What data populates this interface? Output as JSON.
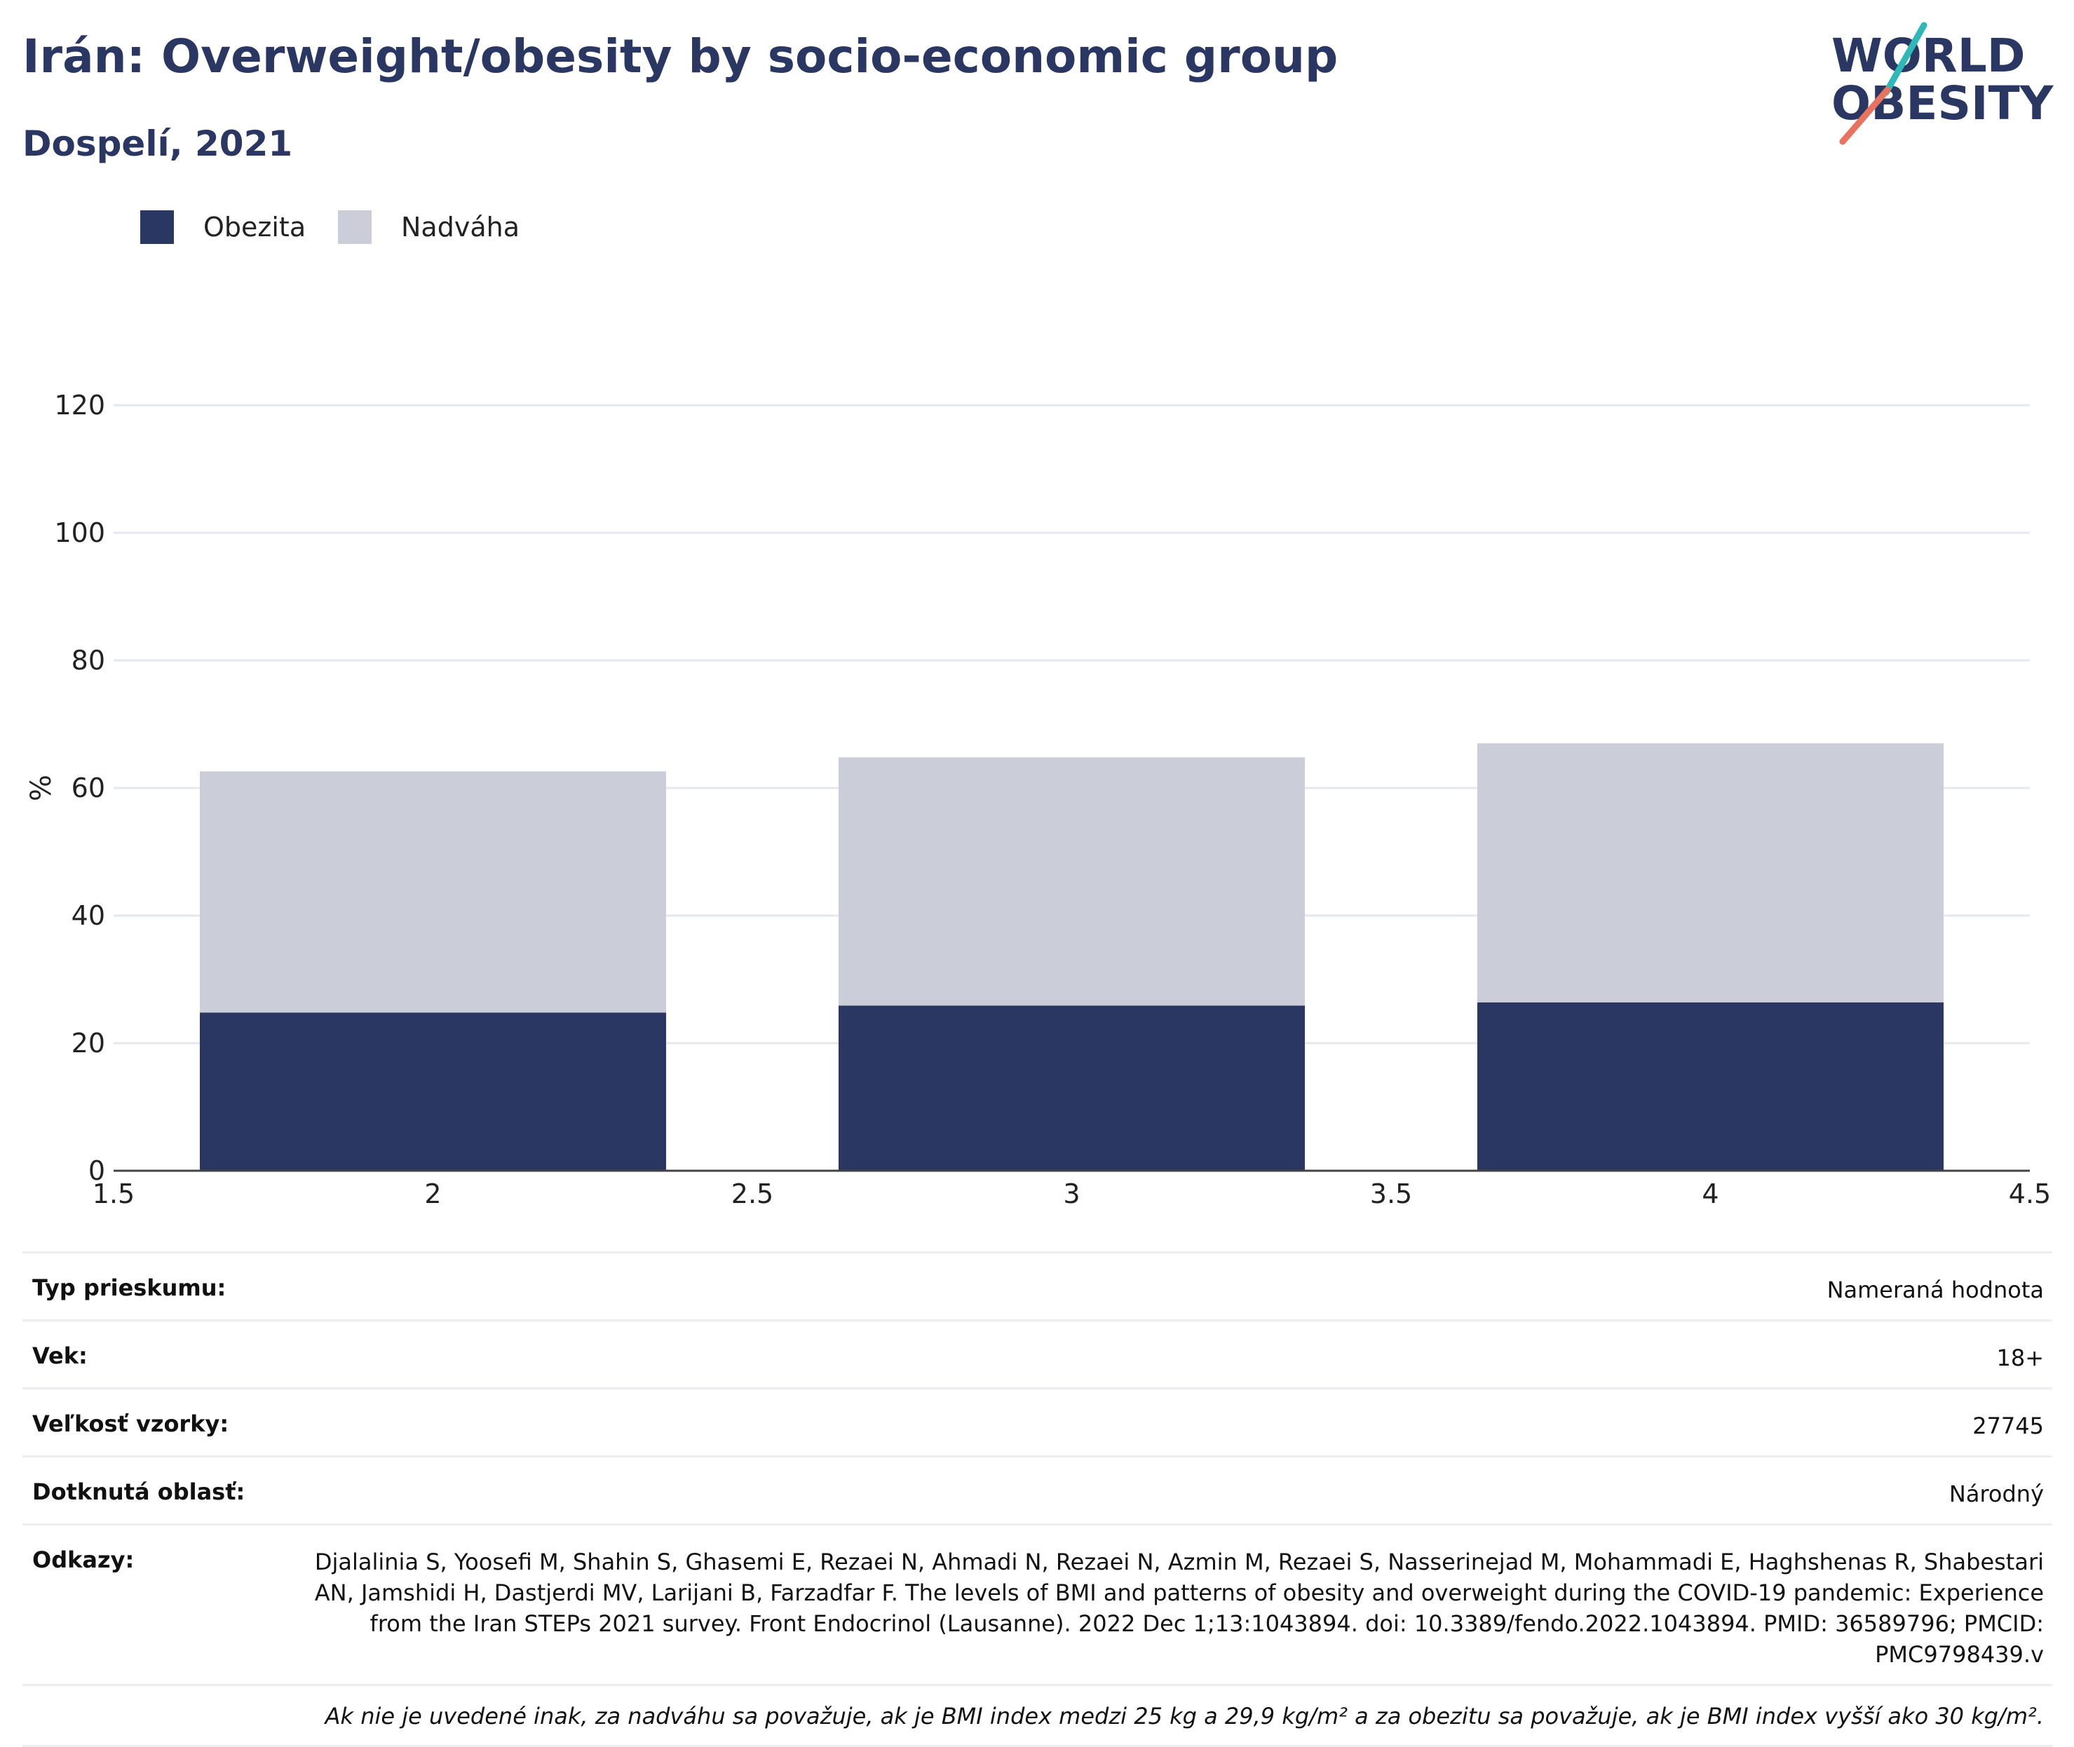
{
  "header": {
    "title": "Irán: Overweight/obesity by socio-economic group",
    "subtitle": "Dospelí, 2021"
  },
  "logo": {
    "line1": "WORLD",
    "line2": "OBESITY",
    "colors": {
      "text": "#2b3763",
      "slash_top": "#2fb8b8",
      "slash_bottom": "#e8735f"
    }
  },
  "legend": [
    {
      "label": "Obezita",
      "color": "#2b3763"
    },
    {
      "label": "Nadváha",
      "color": "#cbcdd8"
    }
  ],
  "chart_data": {
    "type": "bar",
    "stacked": true,
    "x": [
      2,
      3,
      4
    ],
    "xlim": [
      1.5,
      4.5
    ],
    "xticks": [
      "1.5",
      "2",
      "2.5",
      "3",
      "3.5",
      "4",
      "4.5"
    ],
    "ylim": [
      0,
      120
    ],
    "yticks": [
      "0",
      "20",
      "40",
      "60",
      "80",
      "100",
      "120"
    ],
    "ylabel": "%",
    "grid": true,
    "legend_position": "top-left",
    "series": [
      {
        "name": "Obezita",
        "color": "#2b3763",
        "values": [
          24.8,
          25.9,
          26.4
        ]
      },
      {
        "name": "Nadváha",
        "color": "#cbcdd8",
        "values": [
          37.8,
          38.9,
          40.6
        ]
      }
    ]
  },
  "info": [
    {
      "label": "Typ prieskumu:",
      "value": "Nameraná hodnota"
    },
    {
      "label": "Vek:",
      "value": "18+"
    },
    {
      "label": "Veľkosť vzorky:",
      "value": "27745"
    },
    {
      "label": "Dotknutá oblasť:",
      "value": "Národný"
    },
    {
      "label": "Odkazy:",
      "value": "Djalalinia S, Yoosefi M, Shahin S, Ghasemi E, Rezaei N, Ahmadi N, Rezaei N, Azmin M, Rezaei S, Nasserinejad M, Mohammadi E, Haghshenas R, Shabestari AN, Jamshidi H, Dastjerdi MV, Larijani B, Farzadfar F. The levels of BMI and patterns of obesity and overweight during the COVID-19 pandemic: Experience from the Iran STEPs 2021 survey. Front Endocrinol (Lausanne). 2022 Dec 1;13:1043894. doi: 10.3389/fendo.2022.1043894. PMID: 36589796; PMCID: PMC9798439.v"
    }
  ],
  "note": "Ak nie je uvedené inak, za nadváhu sa považuje, ak je BMI index medzi 25 kg a 29,9 kg/m² a za obezitu sa považuje, ak je BMI index vyšší ako 30 kg/m²."
}
